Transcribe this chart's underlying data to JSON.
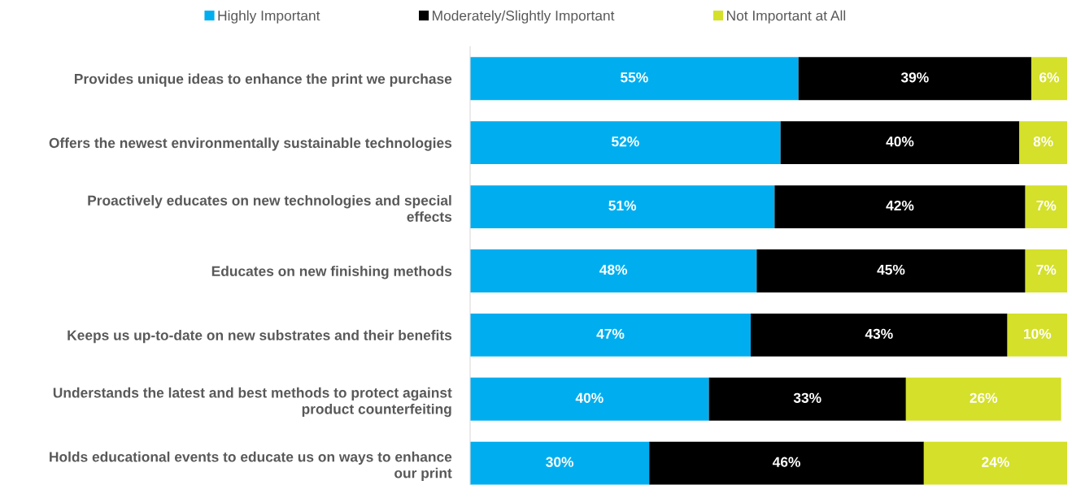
{
  "chart_data": {
    "type": "bar",
    "orientation": "horizontal",
    "stacked": true,
    "legend": "top",
    "grid": false,
    "categories": [
      "Provides unique ideas to enhance the print we purchase",
      "Offers the newest environmentally sustainable technologies",
      "Proactively educates on new technologies and special\neffects",
      "Educates on new finishing methods",
      "Keeps us up-to-date on new substrates and their benefits",
      "Understands the latest and best methods to protect against\nproduct counterfeiting",
      "Holds educational events to educate us on ways to enhance\nour print"
    ],
    "series": [
      {
        "name": "Highly Important",
        "color": "#00aeef",
        "values": [
          55,
          52,
          51,
          48,
          47,
          40,
          30
        ],
        "value_labels": [
          "55%",
          "52%",
          "51%",
          "48%",
          "47%",
          "40%",
          "30%"
        ]
      },
      {
        "name": "Moderately/Slightly Important",
        "color": "#000000",
        "values": [
          39,
          40,
          42,
          45,
          43,
          33,
          46
        ],
        "value_labels": [
          "39%",
          "40%",
          "42%",
          "45%",
          "43%",
          "33%",
          "46%"
        ]
      },
      {
        "name": "Not Important at All",
        "color": "#d4e02a",
        "values": [
          6,
          8,
          7,
          7,
          10,
          26,
          24
        ],
        "value_labels": [
          "6%",
          "8%",
          "7%",
          "7%",
          "10%",
          "26%",
          "24%"
        ]
      }
    ]
  }
}
